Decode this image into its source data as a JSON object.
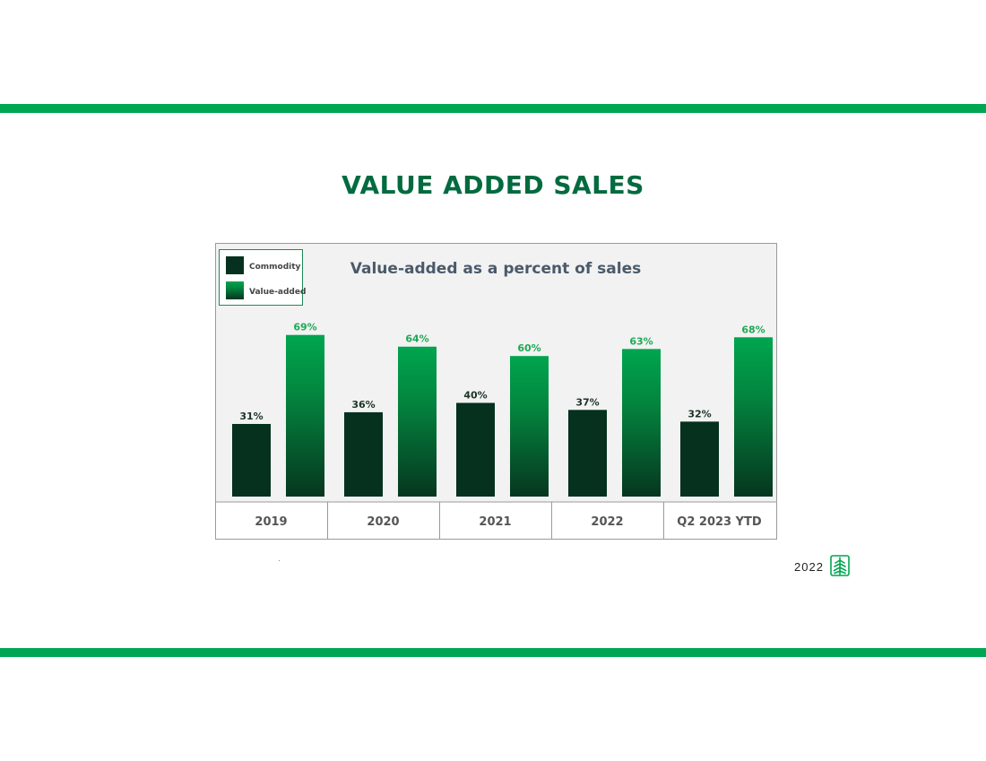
{
  "page": {
    "title": "VALUE ADDED SALES",
    "footer_year": "2022",
    "colors": {
      "band": "#00a651",
      "title": "#006b3f",
      "commodity": "#05311e",
      "value_added_top": "#00a54f",
      "value_added_bottom": "#06361f",
      "value_added_label": "#1fa855",
      "chart_bg": "#f2f2f2"
    }
  },
  "chart_data": {
    "type": "bar",
    "title": "Value-added as a percent of sales",
    "categories": [
      "2019",
      "2020",
      "2021",
      "2022",
      "Q2 2023 YTD"
    ],
    "series": [
      {
        "name": "Commodity",
        "values": [
          31,
          36,
          40,
          37,
          32
        ]
      },
      {
        "name": "Value-added",
        "values": [
          69,
          64,
          60,
          63,
          68
        ]
      }
    ],
    "value_suffix": "%",
    "ylim": [
      0,
      75
    ],
    "grid": false,
    "legend_position": "top-left"
  }
}
